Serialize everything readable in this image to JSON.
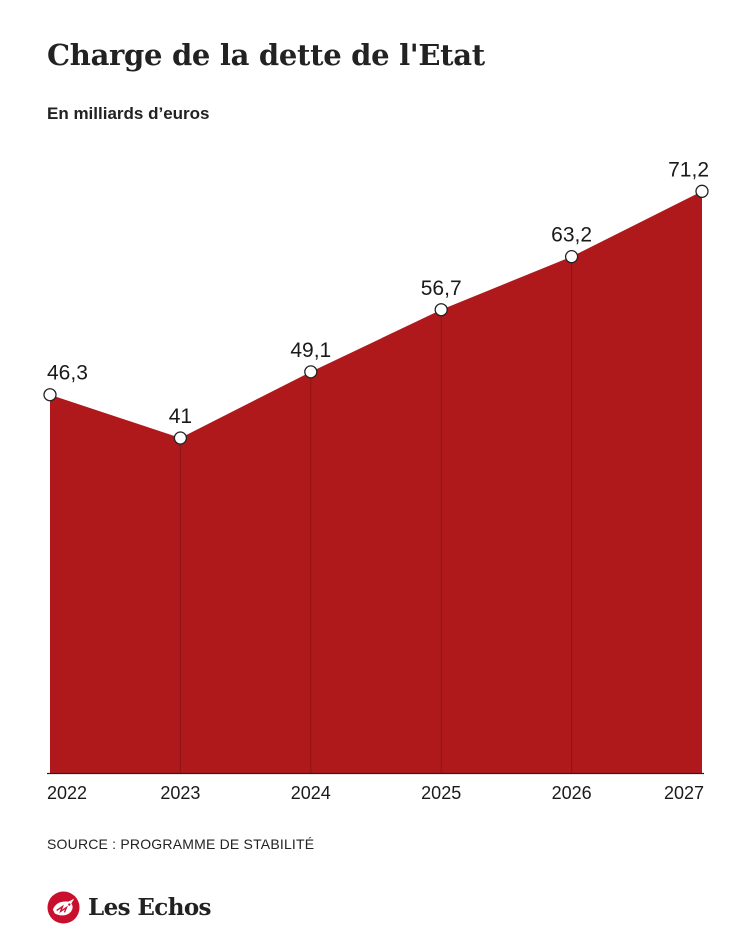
{
  "chart_data": {
    "type": "area",
    "title": "Charge de la dette de l'Etat",
    "subtitle": "En milliards d’euros",
    "categories": [
      "2022",
      "2023",
      "2024",
      "2025",
      "2026",
      "2027"
    ],
    "values": [
      46.3,
      41,
      49.1,
      56.7,
      63.2,
      71.2
    ],
    "data_labels": [
      "46,3",
      "41",
      "49,1",
      "56,7",
      "63,2",
      "71,2"
    ],
    "ylim": [
      0,
      80
    ],
    "grid": false,
    "fill_color": "#b0191b",
    "xlabel": "",
    "ylabel": ""
  },
  "source": "SOURCE : PROGRAMME DE STABILITÉ",
  "brand": {
    "name": "Les Echos",
    "logo_icon": "les-echos-logo-icon",
    "color": "#c8102e"
  }
}
